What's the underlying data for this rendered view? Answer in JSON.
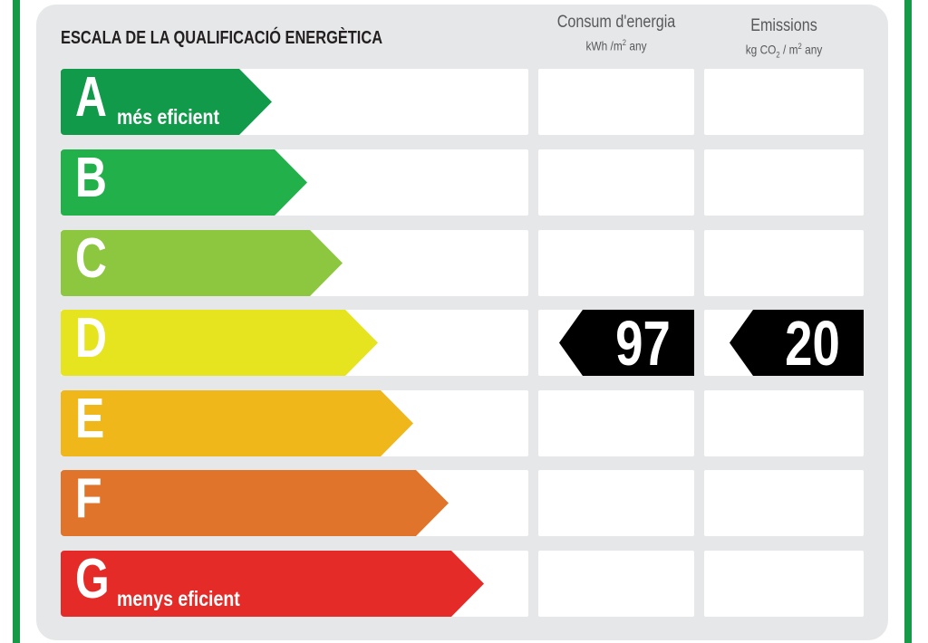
{
  "title": "ESCALA DE LA QUALIFICACIÓ ENERGÈTICA",
  "columns": {
    "energy": {
      "label": "Consum d'energia",
      "unit_pre": "kWh /m",
      "unit_sup": "2",
      "unit_post": " any"
    },
    "emissions": {
      "label": "Emissions",
      "unit_pre": "kg CO",
      "unit_sub": "2",
      "unit_mid": " / m",
      "unit_sup": "2",
      "unit_post": " any"
    }
  },
  "classes": [
    {
      "letter": "A",
      "caption": "més eficient",
      "color": "#119a4a"
    },
    {
      "letter": "B",
      "caption": "",
      "color": "#22b04b"
    },
    {
      "letter": "C",
      "caption": "",
      "color": "#8dc63f"
    },
    {
      "letter": "D",
      "caption": "",
      "color": "#e6e41e"
    },
    {
      "letter": "E",
      "caption": "",
      "color": "#f0b71b"
    },
    {
      "letter": "F",
      "caption": "",
      "color": "#e0742a"
    },
    {
      "letter": "G",
      "caption": "menys eficient",
      "color": "#e42b27"
    }
  ],
  "rating": {
    "class": "D",
    "energy_value": "97",
    "emissions_value": "20"
  },
  "border_color": "#179a48"
}
